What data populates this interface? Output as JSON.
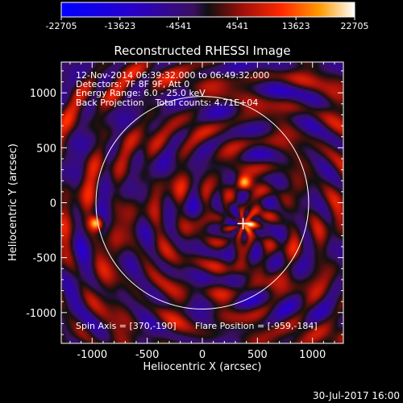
{
  "chart_data": {
    "type": "heatmap",
    "title": "Reconstructed RHESSI Image",
    "xlabel": "Heliocentric X (arcsec)",
    "ylabel": "Heliocentric Y (arcsec)",
    "xlim": [
      -1280,
      1280
    ],
    "ylim": [
      -1280,
      1280
    ],
    "x_ticks": [
      -1000,
      -500,
      0,
      500,
      1000
    ],
    "y_ticks": [
      -1000,
      -500,
      0,
      500,
      1000
    ],
    "colorbar": {
      "min": -22705,
      "max": 22705,
      "tick_values": [
        -22705,
        -13623,
        -4541,
        4541,
        13623,
        22705
      ],
      "tick_labels": [
        "-22705",
        "-13623",
        "-4541",
        "4541",
        "13623",
        "22705"
      ]
    },
    "info_lines": [
      "12-Nov-2014 06:39:32.000 to 06:49:32.000",
      "Detectors: 7F 8F 9F, Att 0",
      "Energy Range: 6.0 - 25.0 keV",
      "Back Projection    Total counts: 4.71E+04"
    ],
    "spin_axis_text": "Spin Axis = [370,-190]",
    "flare_position_text": "Flare Position = [-959,-184]",
    "solar_limb_radius_arcsec": 965,
    "marker_position": [
      370,
      -190
    ],
    "bright_sources": [
      {
        "x": -959,
        "y": -184,
        "value": 22705
      },
      {
        "x": 380,
        "y": 180,
        "value": 20000
      },
      {
        "x": 420,
        "y": -200,
        "value": 17000
      }
    ]
  },
  "footer_date": "30-Jul-2017 16:00"
}
